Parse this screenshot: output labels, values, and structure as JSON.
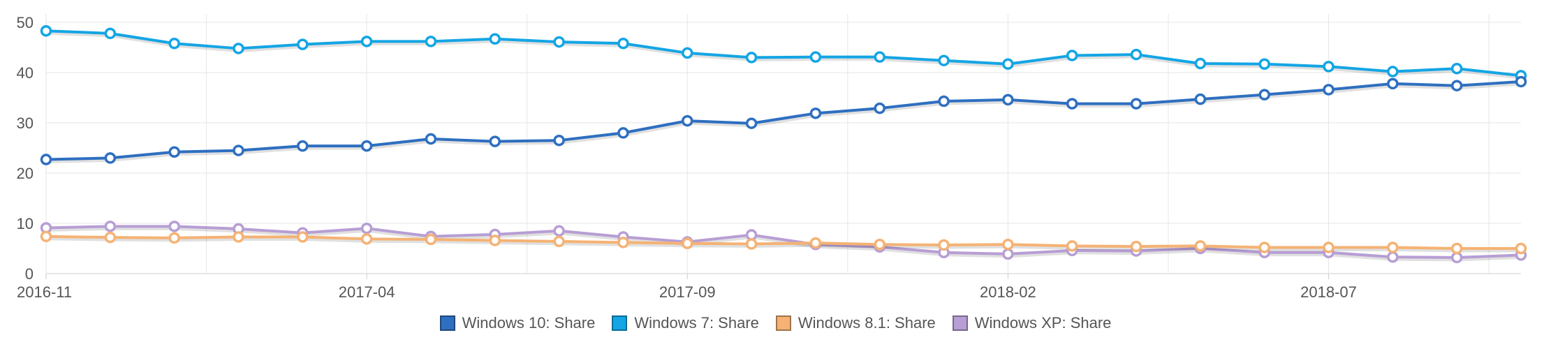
{
  "chart_data": {
    "type": "line",
    "x": [
      "2016-11",
      "2016-12",
      "2017-01",
      "2017-02",
      "2017-03",
      "2017-04",
      "2017-05",
      "2017-06",
      "2017-07",
      "2017-08",
      "2017-09",
      "2017-10",
      "2017-11",
      "2017-12",
      "2018-01",
      "2018-02",
      "2018-03",
      "2018-04",
      "2018-05",
      "2018-06",
      "2018-07",
      "2018-08",
      "2018-09",
      "2018-10"
    ],
    "x_tick_labels": [
      "2016-11",
      "2017-04",
      "2017-09",
      "2018-02",
      "2018-07"
    ],
    "y_ticks": [
      0,
      10,
      20,
      30,
      40,
      50
    ],
    "ylim": [
      0,
      50
    ],
    "grid": true,
    "legend_position": "bottom-center",
    "series": [
      {
        "name": "Windows 10: Share",
        "color": "#2e6fc0",
        "values": [
          22.7,
          23,
          24.2,
          24.5,
          25.4,
          25.4,
          26.8,
          26.3,
          26.5,
          28,
          30.4,
          29.9,
          31.9,
          32.9,
          34.3,
          34.6,
          33.8,
          33.8,
          34.7,
          35.6,
          36.6,
          37.8,
          37.4,
          38.2
        ]
      },
      {
        "name": "Windows 7: Share",
        "color": "#14a5e4",
        "values": [
          48.3,
          47.8,
          45.8,
          44.8,
          45.6,
          46.2,
          46.2,
          46.7,
          46.1,
          45.8,
          43.9,
          43,
          43.1,
          43.1,
          42.4,
          41.7,
          43.4,
          43.6,
          41.8,
          41.7,
          41.2,
          40.2,
          40.8,
          39.4
        ]
      },
      {
        "name": "Windows 8.1: Share",
        "color": "#f5b274",
        "values": [
          7.4,
          7.2,
          7.1,
          7.3,
          7.3,
          6.9,
          6.8,
          6.6,
          6.4,
          6.2,
          6,
          5.9,
          6.1,
          5.8,
          5.7,
          5.8,
          5.5,
          5.4,
          5.5,
          5.2,
          5.2,
          5.2,
          5,
          5
        ]
      },
      {
        "name": "Windows XP: Share",
        "color": "#b79ed4",
        "values": [
          9.1,
          9.4,
          9.4,
          8.9,
          8.1,
          9,
          7.4,
          7.8,
          8.5,
          7.3,
          6.3,
          7.7,
          5.8,
          5.3,
          4.2,
          3.9,
          4.6,
          4.5,
          5,
          4.2,
          4.2,
          3.3,
          3.2,
          3.7
        ]
      }
    ]
  }
}
